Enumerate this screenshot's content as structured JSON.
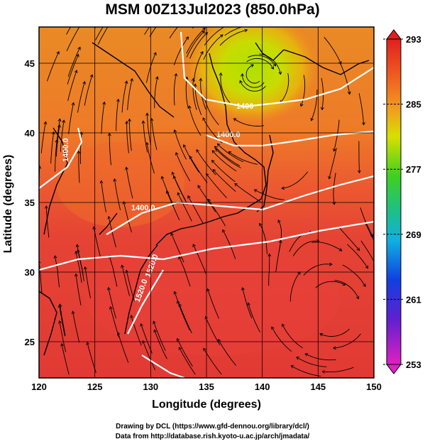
{
  "title": "MSM 00Z13Jul2023 (850.0hPa)",
  "footer": {
    "line1": "Drawing by DCL (https://www.gfd-dennou.org/library/dcl/)",
    "line2": "Data from http://database.rish.kyoto-u.ac.jp/arch/jmadata/"
  },
  "chart_data": {
    "type": "heatmap",
    "xlabel": "Longitude (degrees)",
    "ylabel": "Latitude  (degrees)",
    "xlim": [
      120,
      150
    ],
    "ylim": [
      22.4,
      47.6
    ],
    "x_ticks": [
      "120",
      "125",
      "130",
      "135",
      "140",
      "145",
      "150"
    ],
    "y_ticks": [
      "25",
      "30",
      "35",
      "40",
      "45"
    ],
    "grid": true,
    "colorbar": {
      "ticks": [
        "293",
        "285",
        "277",
        "269",
        "261",
        "253"
      ],
      "min": 253,
      "max": 293
    },
    "contour_labels": [
      "1400",
      "1400.0",
      "1400.0",
      "1400.0",
      "1520.0",
      "1520.0"
    ]
  },
  "colors": {
    "warm": "#e53030",
    "mid": "#f08030",
    "cool": "#b8e000",
    "contour": "#ffffff",
    "streamline": "#000000"
  }
}
